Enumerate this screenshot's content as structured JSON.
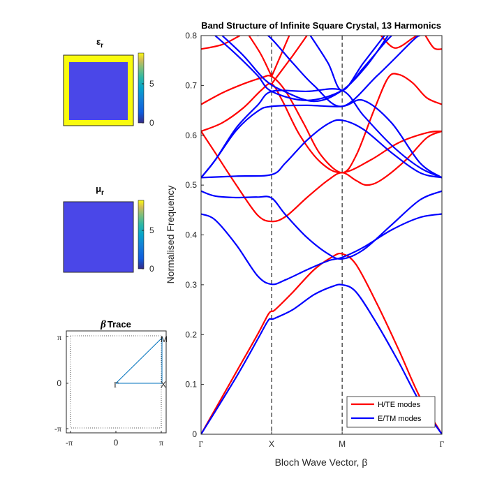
{
  "chart_data": [
    {
      "type": "line",
      "title": "Band Structure of Infinite Square Crystal, 13 Harmonics",
      "xlabel": "Bloch Wave Vector, β",
      "ylabel": "Normalised Frequency",
      "xlim": [
        0,
        3.414
      ],
      "ylim": [
        0,
        0.8
      ],
      "yticks": [
        "0",
        "0.1",
        "0.2",
        "0.3",
        "0.4",
        "0.5",
        "0.6",
        "0.7",
        "0.8"
      ],
      "ytick_values": [
        0,
        0.1,
        0.2,
        0.3,
        0.4,
        0.5,
        0.6,
        0.7,
        0.8
      ],
      "xticks": [
        "Γ",
        "X",
        "M",
        "Γ"
      ],
      "xtick_values": [
        0,
        1,
        2,
        3.414
      ],
      "grid": false,
      "vlines_dashed": [
        1,
        2,
        3.414
      ],
      "legend_position": "bottom-right",
      "series": [
        {
          "name": "H/TE modes",
          "color": "#ff0000",
          "bands": [
            [
              [
                0,
                0
              ],
              [
                0.5,
                0.125
              ],
              [
                0.8,
                0.2
              ],
              [
                0.95,
                0.24
              ],
              [
                1,
                0.247
              ],
              [
                1.05,
                0.25
              ],
              [
                1.3,
                0.285
              ],
              [
                1.6,
                0.33
              ],
              [
                1.85,
                0.355
              ],
              [
                2,
                0.362
              ],
              [
                2.2,
                0.34
              ],
              [
                2.5,
                0.26
              ],
              [
                2.8,
                0.17
              ],
              [
                3.1,
                0.075
              ],
              [
                3.414,
                0
              ]
            ],
            [
              [
                0,
                0.608
              ],
              [
                0.2,
                0.565
              ],
              [
                0.5,
                0.5
              ],
              [
                0.8,
                0.44
              ],
              [
                1,
                0.427
              ],
              [
                1.2,
                0.437
              ],
              [
                1.5,
                0.475
              ],
              [
                1.8,
                0.51
              ],
              [
                2,
                0.525
              ],
              [
                2.2,
                0.509
              ],
              [
                2.35,
                0.5
              ],
              [
                2.55,
                0.51
              ],
              [
                2.9,
                0.55
              ],
              [
                3.2,
                0.595
              ],
              [
                3.414,
                0.608
              ]
            ],
            [
              [
                0,
                0.608
              ],
              [
                0.3,
                0.625
              ],
              [
                0.6,
                0.655
              ],
              [
                0.85,
                0.69
              ],
              [
                1,
                0.703
              ],
              [
                1.15,
                0.67
              ],
              [
                1.4,
                0.6
              ],
              [
                1.7,
                0.545
              ],
              [
                2,
                0.525
              ],
              [
                2.4,
                0.55
              ],
              [
                2.8,
                0.585
              ],
              [
                3.2,
                0.605
              ],
              [
                3.414,
                0.608
              ]
            ],
            [
              [
                0,
                0.662
              ],
              [
                0.3,
                0.685
              ],
              [
                0.6,
                0.703
              ],
              [
                0.85,
                0.715
              ],
              [
                1,
                0.718
              ],
              [
                1.2,
                0.688
              ],
              [
                1.45,
                0.625
              ],
              [
                1.7,
                0.56
              ],
              [
                2,
                0.525
              ],
              [
                2.2,
                0.56
              ],
              [
                2.45,
                0.65
              ],
              [
                2.65,
                0.715
              ],
              [
                2.8,
                0.722
              ],
              [
                3.0,
                0.705
              ],
              [
                3.2,
                0.675
              ],
              [
                3.414,
                0.662
              ]
            ],
            [
              [
                0,
                0.773
              ],
              [
                0.3,
                0.782
              ],
              [
                0.55,
                0.8
              ]
            ],
            [
              [
                0.68,
                0.8
              ],
              [
                0.85,
                0.762
              ],
              [
                1,
                0.718
              ]
            ],
            [
              [
                1,
                0.718
              ],
              [
                1.25,
                0.8
              ]
            ],
            [
              [
                1.0,
                0.703
              ],
              [
                1.3,
                0.76
              ],
              [
                1.5,
                0.8
              ]
            ],
            [
              [
                2.55,
                0.8
              ],
              [
                2.75,
                0.775
              ],
              [
                3.0,
                0.795
              ],
              [
                3.05,
                0.8
              ]
            ],
            [
              [
                3.414,
                0.773
              ],
              [
                3.3,
                0.775
              ],
              [
                3.18,
                0.8
              ]
            ]
          ]
        },
        {
          "name": "E/TM modes",
          "color": "#0000ff",
          "bands": [
            [
              [
                0,
                0
              ],
              [
                0.5,
                0.115
              ],
              [
                0.8,
                0.19
              ],
              [
                0.95,
                0.228
              ],
              [
                1,
                0.231
              ],
              [
                1.05,
                0.233
              ],
              [
                1.3,
                0.25
              ],
              [
                1.6,
                0.28
              ],
              [
                1.85,
                0.296
              ],
              [
                2,
                0.3
              ],
              [
                2.2,
                0.285
              ],
              [
                2.5,
                0.22
              ],
              [
                2.8,
                0.145
              ],
              [
                3.1,
                0.065
              ],
              [
                3.414,
                0
              ]
            ],
            [
              [
                0,
                0.442
              ],
              [
                0.2,
                0.43
              ],
              [
                0.5,
                0.38
              ],
              [
                0.8,
                0.318
              ],
              [
                1,
                0.301
              ],
              [
                1.2,
                0.31
              ],
              [
                1.5,
                0.33
              ],
              [
                1.8,
                0.348
              ],
              [
                2,
                0.355
              ],
              [
                2.3,
                0.375
              ],
              [
                2.7,
                0.41
              ],
              [
                3.1,
                0.435
              ],
              [
                3.414,
                0.442
              ]
            ],
            [
              [
                0,
                0.488
              ],
              [
                0.2,
                0.478
              ],
              [
                0.5,
                0.475
              ],
              [
                0.8,
                0.476
              ],
              [
                1,
                0.474
              ],
              [
                1.2,
                0.44
              ],
              [
                1.5,
                0.395
              ],
              [
                1.8,
                0.362
              ],
              [
                2,
                0.352
              ],
              [
                2.3,
                0.37
              ],
              [
                2.7,
                0.42
              ],
              [
                3.1,
                0.47
              ],
              [
                3.414,
                0.488
              ]
            ],
            [
              [
                0,
                0.515
              ],
              [
                0.5,
                0.518
              ],
              [
                1,
                0.521
              ],
              [
                1.2,
                0.545
              ],
              [
                1.5,
                0.59
              ],
              [
                1.8,
                0.623
              ],
              [
                2,
                0.63
              ],
              [
                2.3,
                0.612
              ],
              [
                2.7,
                0.565
              ],
              [
                3.1,
                0.525
              ],
              [
                3.414,
                0.515
              ]
            ],
            [
              [
                0,
                0.515
              ],
              [
                0.2,
                0.55
              ],
              [
                0.5,
                0.61
              ],
              [
                0.8,
                0.648
              ],
              [
                1,
                0.658
              ],
              [
                1.5,
                0.66
              ],
              [
                2,
                0.658
              ],
              [
                2.3,
                0.67
              ],
              [
                2.7,
                0.625
              ],
              [
                3.1,
                0.545
              ],
              [
                3.414,
                0.515
              ]
            ],
            [
              [
                0,
                0.515
              ],
              [
                0.2,
                0.55
              ],
              [
                0.5,
                0.615
              ],
              [
                0.8,
                0.66
              ],
              [
                1,
                0.688
              ],
              [
                1.5,
                0.688
              ],
              [
                2,
                0.69
              ],
              [
                2.3,
                0.64
              ],
              [
                2.7,
                0.58
              ],
              [
                3.1,
                0.535
              ],
              [
                3.414,
                0.515
              ]
            ],
            [
              [
                0.2,
                0.8
              ],
              [
                0.5,
                0.762
              ],
              [
                0.8,
                0.72
              ],
              [
                1,
                0.688
              ],
              [
                1.5,
                0.67
              ],
              [
                2,
                0.69
              ],
              [
                2.3,
                0.735
              ],
              [
                2.6,
                0.785
              ],
              [
                2.7,
                0.8
              ]
            ],
            [
              [
                0.3,
                0.8
              ],
              [
                0.6,
                0.76
              ],
              [
                0.9,
                0.712
              ],
              [
                1.15,
                0.69
              ],
              [
                1.6,
                0.668
              ],
              [
                2,
                0.69
              ],
              [
                2.35,
                0.74
              ],
              [
                2.65,
                0.8
              ]
            ],
            [
              [
                0.8,
                0.8
              ],
              [
                0.95,
                0.8
              ],
              [
                1.3,
                0.745
              ],
              [
                1.6,
                0.7
              ],
              [
                2,
                0.658
              ],
              [
                2.5,
                0.72
              ],
              [
                3,
                0.79
              ],
              [
                3.1,
                0.8
              ]
            ],
            [
              [
                1.55,
                0.8
              ],
              [
                1.8,
                0.745
              ],
              [
                2,
                0.69
              ],
              [
                2.3,
                0.745
              ],
              [
                2.6,
                0.8
              ]
            ]
          ]
        }
      ]
    },
    {
      "type": "heatmap",
      "title": "ε",
      "title_subscript": "r",
      "colorbar_ticks": [
        "0",
        "5"
      ],
      "colorbar_tick_values": [
        0,
        5
      ],
      "colorbar_max": 9,
      "frame_value": 9,
      "inner_value": 1
    },
    {
      "type": "heatmap",
      "title": "μ",
      "title_subscript": "r",
      "colorbar_ticks": [
        "0",
        "5"
      ],
      "colorbar_tick_values": [
        0,
        5
      ],
      "colorbar_max": 9,
      "inner_value": 1
    },
    {
      "type": "line",
      "title_symbol": "β",
      "title": "Trace",
      "xticks": [
        "-π",
        "0",
        "π"
      ],
      "yticks": [
        "-π",
        "0",
        "π"
      ],
      "xlim": [
        -3.6,
        3.6
      ],
      "ylim": [
        -3.6,
        3.6
      ],
      "path": [
        [
          0,
          0
        ],
        [
          3.1416,
          0
        ],
        [
          3.1416,
          3.1416
        ],
        [
          0,
          0
        ]
      ],
      "point_labels": [
        "Γ",
        "X",
        "M"
      ],
      "line_color": "#0072bd"
    }
  ]
}
